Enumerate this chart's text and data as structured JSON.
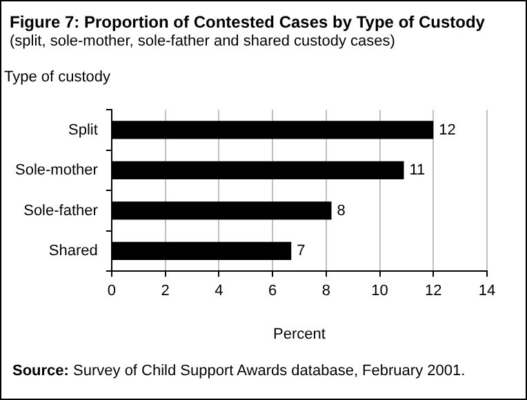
{
  "chart_data": {
    "type": "bar",
    "orientation": "horizontal",
    "title": "Figure 7: Proportion of Contested Cases by Type of Custody",
    "subtitle": "(split, sole-mother, sole-father and shared custody cases)",
    "ylabel": "Type of custody",
    "xlabel": "Percent",
    "categories": [
      "Split",
      "Sole-mother",
      "Sole-father",
      "Shared"
    ],
    "values": [
      12.0,
      10.9,
      8.2,
      6.7
    ],
    "value_labels": [
      "12",
      "11",
      "8",
      "7"
    ],
    "color": "#000000",
    "xlim": [
      0,
      14
    ],
    "xticks": [
      0,
      2,
      4,
      6,
      8,
      10,
      12,
      14
    ],
    "grid": "x",
    "legend": false,
    "annotations": [
      "Source: Survey of Child Support Awards database, February 2001."
    ]
  }
}
